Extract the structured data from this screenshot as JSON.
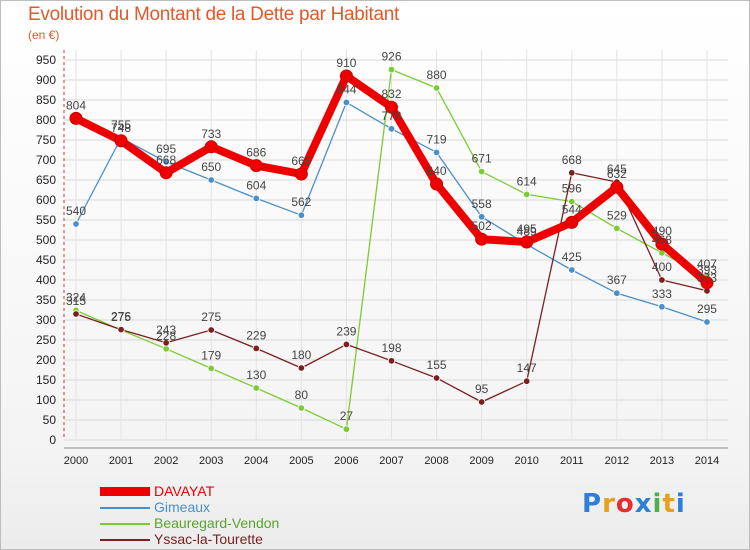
{
  "chart_data": {
    "type": "line",
    "title": "Evolution du Montant de la Dette par Habitant",
    "ylabel": "(en €)",
    "xlabel": "",
    "ylim": [
      0,
      950
    ],
    "yticks": [
      0,
      50,
      100,
      150,
      200,
      250,
      300,
      350,
      400,
      450,
      500,
      550,
      600,
      650,
      700,
      750,
      800,
      850,
      900,
      950
    ],
    "x": [
      "2000",
      "2001",
      "2002",
      "2003",
      "2004",
      "2005",
      "2006",
      "2007",
      "2008",
      "2009",
      "2010",
      "2011",
      "2012",
      "2013",
      "2014"
    ],
    "series": [
      {
        "name": "Gimeaux",
        "color": "#4a90c8",
        "values": [
          540,
          755,
          695,
          650,
          604,
          562,
          844,
          778,
          719,
          558,
          489,
          425,
          367,
          333,
          295
        ]
      },
      {
        "name": "Beauregard-Vendon",
        "color": "#7acc33",
        "values": [
          324,
          275,
          228,
          179,
          130,
          80,
          27,
          926,
          880,
          671,
          614,
          596,
          529,
          468,
          407
        ]
      },
      {
        "name": "Yssac-la-Tourette",
        "color": "#7a2020",
        "values": [
          315,
          276,
          243,
          275,
          229,
          180,
          239,
          198,
          155,
          95,
          147,
          668,
          645,
          400,
          373
        ]
      },
      {
        "name": "DAVAYAT",
        "color": "#ee0000",
        "values": [
          804,
          748,
          668,
          733,
          686,
          665,
          910,
          832,
          640,
          502,
          495,
          544,
          632,
          490,
          393
        ]
      }
    ]
  },
  "legend": [
    {
      "name": "DAVAYAT",
      "color": "#ee0000"
    },
    {
      "name": "Gimeaux",
      "color": "#4a90c8"
    },
    {
      "name": "Beauregard-Vendon",
      "color": "#7acc33"
    },
    {
      "name": "Yssac-la-Tourette",
      "color": "#7a2020"
    }
  ],
  "logo": {
    "text": "Proxiti",
    "colors": [
      "#2e7fd6",
      "#e8a020",
      "#e03030",
      "#2e7fd6",
      "#4caf50",
      "#e8a020",
      "#2e7fd6"
    ]
  }
}
